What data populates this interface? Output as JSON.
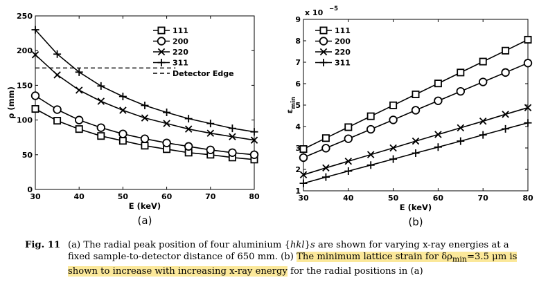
{
  "chart_data": [
    {
      "type": "line",
      "panel_label": "(a)",
      "xlabel": "E (keV)",
      "ylabel": "ρ (mm)",
      "xlim": [
        30,
        80
      ],
      "ylim": [
        0,
        250
      ],
      "xticks": [
        30,
        40,
        50,
        60,
        70,
        80
      ],
      "yticks": [
        0,
        50,
        100,
        150,
        200,
        250
      ],
      "legend_position": "top-right",
      "x": [
        30,
        35,
        40,
        45,
        50,
        55,
        60,
        65,
        70,
        75,
        80
      ],
      "series": [
        {
          "name": "111",
          "marker": "square",
          "values": [
            116,
            99,
            87,
            77,
            70,
            63,
            58,
            53,
            50,
            46,
            43
          ]
        },
        {
          "name": "200",
          "marker": "circle",
          "values": [
            135,
            115,
            100,
            89,
            80,
            73,
            67,
            62,
            57,
            53,
            50
          ]
        },
        {
          "name": "220",
          "marker": "x",
          "values": [
            194,
            165,
            143,
            127,
            114,
            103,
            95,
            87,
            81,
            76,
            71
          ]
        },
        {
          "name": "311",
          "marker": "plus",
          "values": [
            230,
            195,
            169,
            149,
            134,
            121,
            111,
            102,
            95,
            88,
            83
          ]
        }
      ],
      "reference_line": {
        "name": "Detector Edge",
        "value": 175,
        "style": "dashed",
        "x_end": 62
      }
    },
    {
      "type": "line",
      "panel_label": "(b)",
      "xlabel": "E (keV)",
      "ylabel": "εmin",
      "ylabel_main": "ε",
      "ylabel_sub": "min",
      "scale_label": "x 10",
      "scale_exponent": "−5",
      "xlim": [
        30,
        80
      ],
      "ylim": [
        1,
        9
      ],
      "xticks": [
        30,
        40,
        50,
        60,
        70,
        80
      ],
      "yticks": [
        1,
        2,
        3,
        4,
        5,
        6,
        7,
        8,
        9
      ],
      "legend_position": "top-left",
      "x": [
        30,
        35,
        40,
        45,
        50,
        55,
        60,
        65,
        70,
        75,
        80
      ],
      "series": [
        {
          "name": "111",
          "marker": "square",
          "values": [
            2.95,
            3.46,
            3.97,
            4.48,
            4.99,
            5.5,
            6.01,
            6.52,
            7.03,
            7.54,
            8.05
          ]
        },
        {
          "name": "200",
          "marker": "circle",
          "values": [
            2.55,
            2.99,
            3.43,
            3.87,
            4.31,
            4.76,
            5.2,
            5.64,
            6.08,
            6.52,
            6.96
          ]
        },
        {
          "name": "220",
          "marker": "x",
          "values": [
            1.75,
            2.07,
            2.38,
            2.69,
            3.0,
            3.32,
            3.63,
            3.94,
            4.25,
            4.57,
            4.88
          ]
        },
        {
          "name": "311",
          "marker": "plus",
          "values": [
            1.35,
            1.64,
            1.92,
            2.2,
            2.48,
            2.76,
            3.04,
            3.32,
            3.61,
            3.89,
            4.17
          ]
        }
      ]
    }
  ],
  "caption": {
    "label": "Fig. 11",
    "text_before": "(a) The radial peak position of four aluminium {",
    "hkl": "hkl",
    "text_after_hkl": "}",
    "s_suffix": "s",
    "text_mid": " are shown for varying x-ray energies at a fixed sample-to-detector distance of 650 mm. (b) ",
    "highlight_1": "The minimum lattice strain for δρ",
    "highlight_sub": "min",
    "highlight_2": "=3.5 μm is shown to increase with increasing x-ray energy",
    "text_end": " for the radial positions in (a)"
  },
  "colors": {
    "line": "#000000",
    "highlight": "#fbe89a"
  }
}
